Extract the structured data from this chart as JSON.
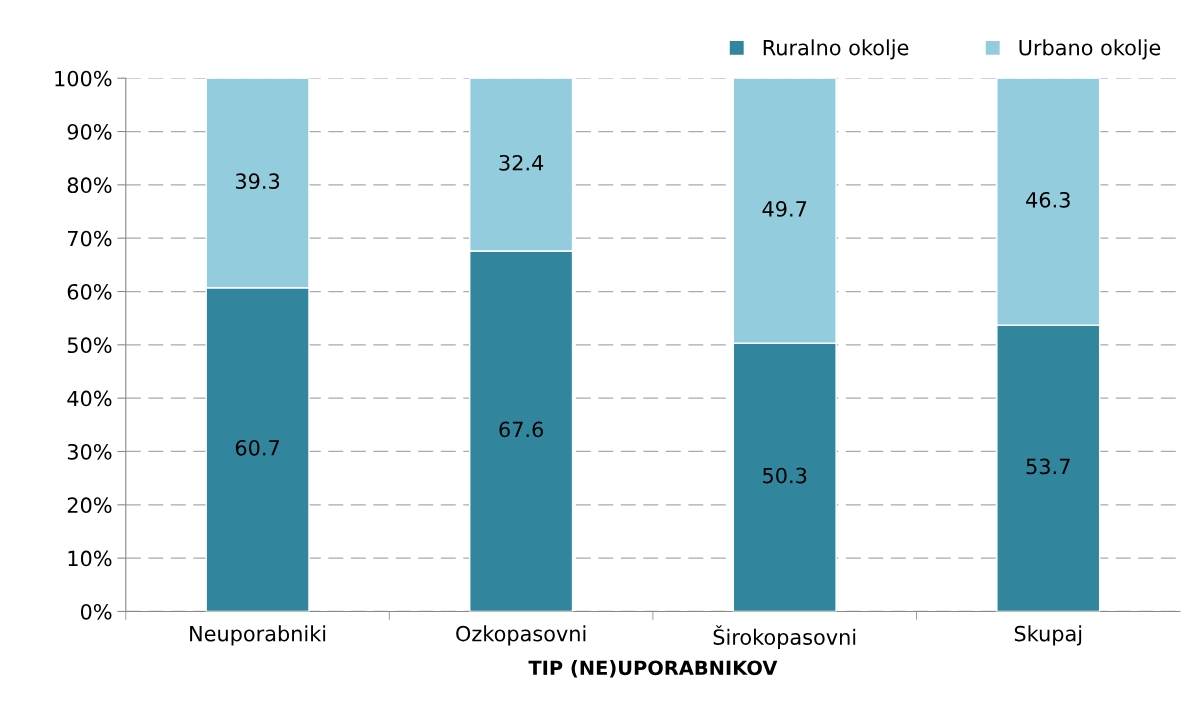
{
  "chart_data": {
    "type": "bar",
    "stacked": true,
    "xlabel": "TIP (NE)UPORABNIKOV",
    "categories": [
      "Neuporabniki",
      "Ozkopasovni",
      "Širokopasovni",
      "Skupaj"
    ],
    "series": [
      {
        "name": "Ruralno okolje",
        "color": "#31859c",
        "values": [
          60.7,
          67.6,
          50.3,
          53.7
        ]
      },
      {
        "name": "Urbano okolje",
        "color": "#93cddd",
        "values": [
          39.3,
          32.4,
          49.7,
          46.3
        ]
      }
    ],
    "ylim": [
      0,
      100
    ],
    "yticks": [
      {
        "value": 0,
        "label": "0%"
      },
      {
        "value": 10,
        "label": "10%"
      },
      {
        "value": 20,
        "label": "20%"
      },
      {
        "value": 30,
        "label": "30%"
      },
      {
        "value": 40,
        "label": "40%"
      },
      {
        "value": 50,
        "label": "50%"
      },
      {
        "value": 60,
        "label": "60%"
      },
      {
        "value": 70,
        "label": "70%"
      },
      {
        "value": 80,
        "label": "80%"
      },
      {
        "value": 90,
        "label": "90%"
      },
      {
        "value": 100,
        "label": "100%"
      }
    ],
    "grid": "y",
    "legend": "top right",
    "data_labels": true
  }
}
